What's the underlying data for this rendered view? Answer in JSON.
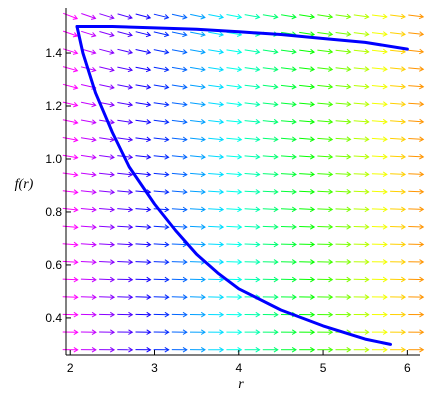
{
  "chart_data": {
    "type": "line",
    "title": "",
    "xlabel": "r",
    "ylabel": "f(r)",
    "xlim": [
      1.95,
      6.15
    ],
    "ylim": [
      0.26,
      1.57
    ],
    "x_ticks": [
      2,
      3,
      4,
      5,
      6
    ],
    "y_ticks": [
      0.4,
      0.6,
      0.8,
      1.0,
      1.2,
      1.4
    ],
    "x_tick_labels": [
      "2",
      "3",
      "4",
      "5",
      "6"
    ],
    "y_tick_labels": [
      "0.4",
      "0.6",
      "0.8",
      "1.0",
      "1.2",
      "1.4"
    ],
    "grid": false,
    "legend": "none",
    "line_color": "#0000ff",
    "direction_field": {
      "x_range": [
        2.0,
        6.1
      ],
      "y_range": [
        0.28,
        1.54
      ],
      "columns": 20,
      "rows": 20,
      "colors": "rainbow by column, magenta at left to orange at right"
    },
    "series": [
      {
        "points": [
          [
            2.08,
            1.5
          ],
          [
            2.5,
            1.5
          ],
          [
            3.0,
            1.495
          ],
          [
            3.5,
            1.49
          ],
          [
            4.0,
            1.48
          ],
          [
            4.5,
            1.47
          ],
          [
            5.0,
            1.455
          ],
          [
            5.5,
            1.44
          ],
          [
            6.0,
            1.415
          ]
        ]
      },
      {
        "points": [
          [
            2.08,
            1.5
          ],
          [
            2.15,
            1.4
          ],
          [
            2.3,
            1.25
          ],
          [
            2.5,
            1.1
          ],
          [
            2.7,
            0.97
          ],
          [
            3.0,
            0.83
          ],
          [
            3.25,
            0.73
          ],
          [
            3.5,
            0.64
          ],
          [
            3.75,
            0.57
          ],
          [
            4.0,
            0.51
          ],
          [
            4.5,
            0.43
          ],
          [
            5.0,
            0.37
          ],
          [
            5.5,
            0.32
          ],
          [
            5.8,
            0.3
          ]
        ]
      }
    ]
  }
}
